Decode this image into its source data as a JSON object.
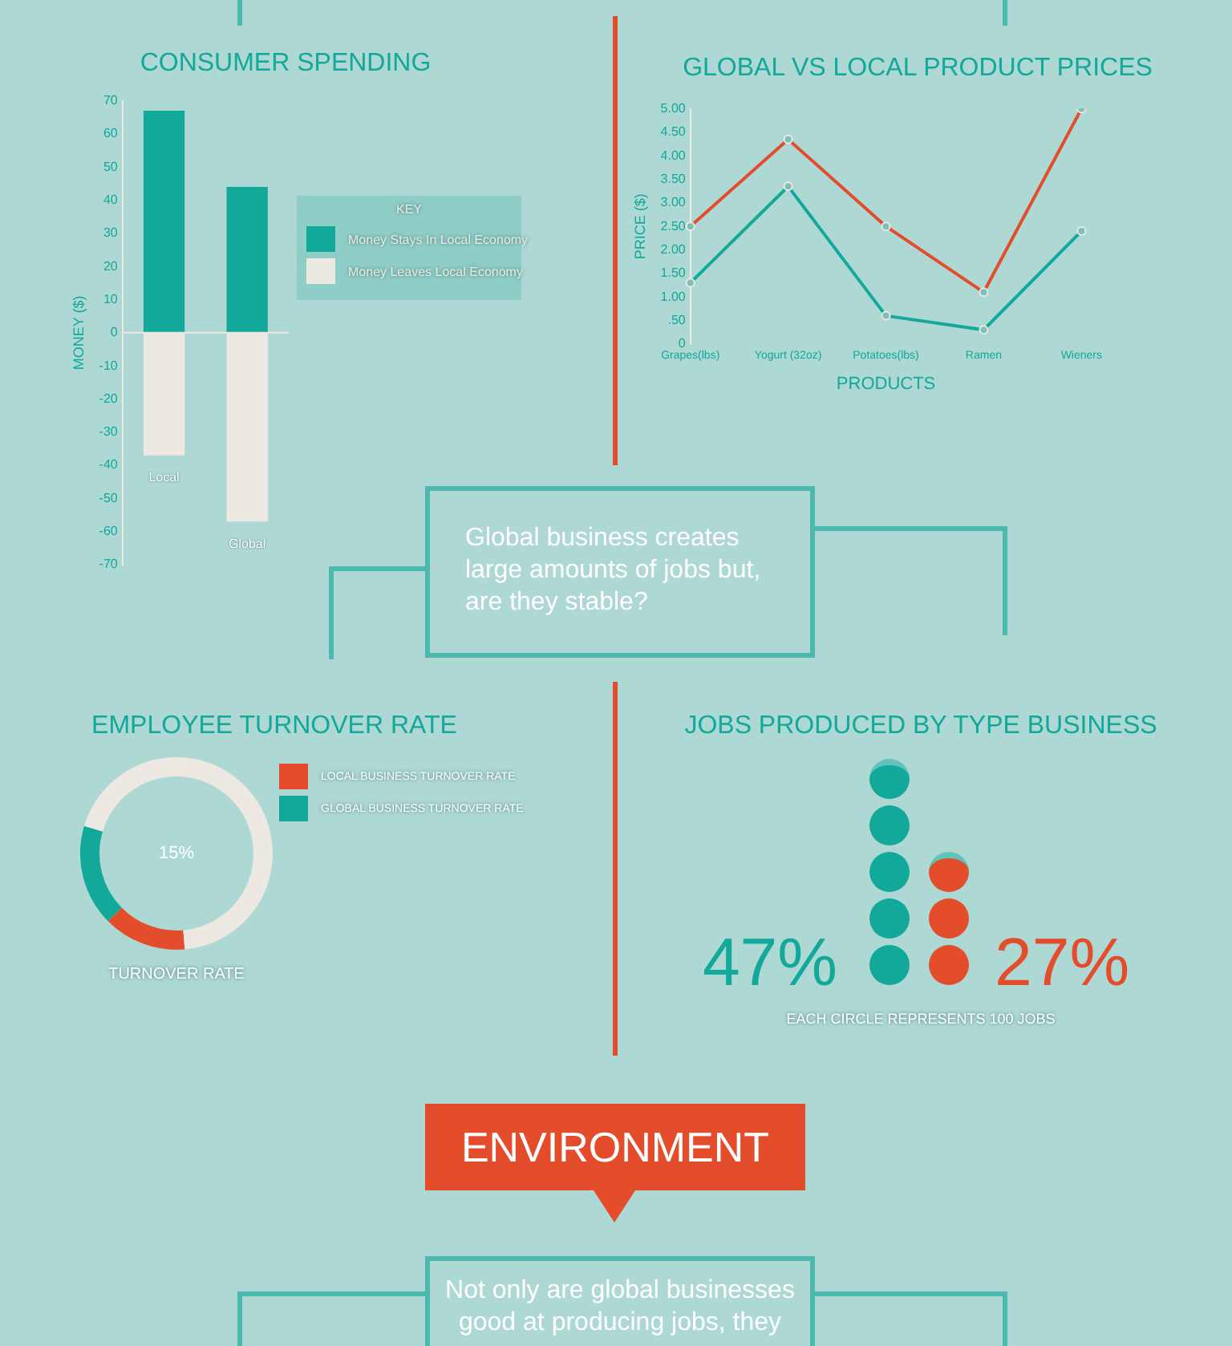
{
  "chart_data": [
    {
      "type": "bar",
      "title": "CONSUMER SPENDING",
      "ylabel": "MONEY ($)",
      "legend_title": "KEY",
      "categories": [
        "Local",
        "Global"
      ],
      "stacked": true,
      "ref_lines": [
        {
          "axis": "y",
          "value": 0,
          "color": "#ede8e1"
        }
      ],
      "grid": false,
      "legend": "right",
      "series": [
        {
          "name": "Money Stays In Local Economy",
          "color": "#12a89a",
          "values": [
            67,
            44
          ]
        },
        {
          "name": "Money Leaves Local Economy",
          "color": "#ede8e1",
          "values": [
            -37,
            -57
          ]
        }
      ],
      "ylim": [
        -70,
        70
      ],
      "yticks": [
        -70,
        -60,
        -50,
        -40,
        -30,
        -20,
        -10,
        0,
        10,
        20,
        30,
        40,
        50,
        60,
        70
      ]
    },
    {
      "type": "line",
      "title": "GLOBAL VS LOCAL PRODUCT PRICES",
      "xlabel": "PRODUCTS",
      "ylabel": "PRICE ($)",
      "categories": [
        "Grapes(lbs)",
        "Yogurt (32oz)",
        "Potatoes(lbs)",
        "Ramen",
        "Wieners"
      ],
      "grid": false,
      "marker": "circle",
      "line_style": "solid",
      "series": [
        {
          "color": "#e34d2c",
          "values": [
            2.5,
            4.35,
            2.5,
            1.1,
            5.0
          ]
        },
        {
          "color": "#12a89a",
          "values": [
            1.3,
            3.35,
            0.6,
            0.3,
            2.4
          ]
        }
      ],
      "ylim": [
        0,
        5
      ],
      "yticks": [
        0,
        {
          "value": 0.5,
          "label": ".50"
        },
        {
          "value": 1,
          "label": "1.00"
        },
        {
          "value": 1.5,
          "label": "1.50"
        },
        {
          "value": 2,
          "label": "2.00"
        },
        {
          "value": 2.5,
          "label": "2.50"
        },
        {
          "value": 3,
          "label": "3.00"
        },
        {
          "value": 3.5,
          "label": "3.50"
        },
        {
          "value": 4,
          "label": "4.00"
        },
        {
          "value": 4.5,
          "label": "4.50"
        },
        {
          "value": 5,
          "label": "5.00"
        }
      ]
    },
    {
      "type": "donut",
      "title": "EMPLOYEE TURNOVER RATE",
      "xlabel": "TURNOVER RATE",
      "legend": "right",
      "categories": [
        "LOCAL BUSINESS TURNOVER RATE",
        "GLOBAL BUSINESS TURNOVER RATE",
        null
      ],
      "values": [
        14,
        17,
        69
      ],
      "colors": [
        "#e34d2c",
        "#12a89a",
        "#ede8e1"
      ],
      "annotations": [
        "15%"
      ]
    },
    {
      "type": "other",
      "title": "JOBS PRODUCED BY TYPE BUSINESS",
      "annotations": [
        "47%",
        "27%",
        "EACH CIRCLE REPRESENTS 100 JOBS"
      ],
      "colors": [
        "#12a89a",
        "#e34d2c"
      ]
    },
    {
      "type": "other",
      "annotations": [
        "Global business creates large amounts of jobs but, are they stable?",
        "ENVIRONMENT",
        "Not only are global businesses good at producing jobs, they"
      ]
    }
  ]
}
